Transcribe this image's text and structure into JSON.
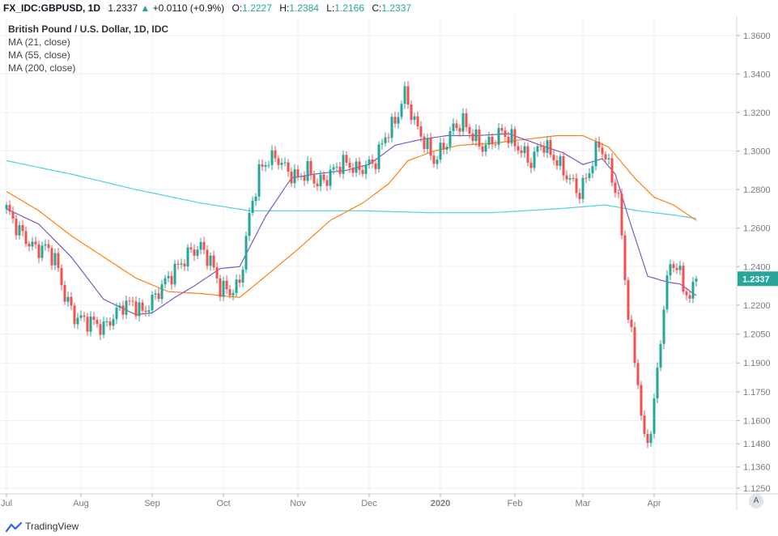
{
  "header": {
    "symbol": "FX_IDC:GBPUSD, 1D",
    "last": "1.2337",
    "arrow": "▲",
    "change": "+0.0110 (+0.9%)",
    "o_label": "O:",
    "o_val": "1.2227",
    "h_label": "H:",
    "h_val": "1.2384",
    "l_label": "L:",
    "l_val": "1.2166",
    "c_label": "C:",
    "c_val": "1.2337"
  },
  "legend": {
    "title": "British Pound / U.S. Dollar, 1D, IDC",
    "ma21": "MA (21, close)",
    "ma55": "MA (55, close)",
    "ma200": "MA (200, close)"
  },
  "price_tag": "1.2337",
  "auto_label": "A",
  "brand": "TradingView",
  "colors": {
    "up": "#26a69a",
    "down": "#ef5350",
    "ma21": "#7e57c2",
    "ma55": "#ff7f0e",
    "ma200": "#4dd0e1",
    "grid": "#eef0f3",
    "axis": "#787b86",
    "tag": "#26a69a"
  },
  "chart_data": {
    "type": "candlestick",
    "title": "British Pound / U.S. Dollar, 1D, IDC",
    "y_ticks": [
      1.36,
      1.34,
      1.32,
      1.3,
      1.28,
      1.26,
      1.24,
      1.22,
      1.205,
      1.19,
      1.175,
      1.16,
      1.148,
      1.136,
      1.125
    ],
    "x_ticks": [
      "Jul",
      "Aug",
      "Sep",
      "Oct",
      "Nov",
      "Dec",
      "2020",
      "Feb",
      "Mar",
      "Apr"
    ],
    "x_tick_positions": [
      0,
      23,
      45,
      67,
      90,
      112,
      134,
      157,
      178,
      200
    ],
    "close_path": [
      [
        0,
        1.27
      ],
      [
        3,
        1.261
      ],
      [
        6,
        1.254
      ],
      [
        9,
        1.249
      ],
      [
        12,
        1.25
      ],
      [
        15,
        1.244
      ],
      [
        18,
        1.225
      ],
      [
        21,
        1.214
      ],
      [
        24,
        1.212
      ],
      [
        27,
        1.211
      ],
      [
        30,
        1.208
      ],
      [
        33,
        1.214
      ],
      [
        36,
        1.22
      ],
      [
        39,
        1.221
      ],
      [
        42,
        1.216
      ],
      [
        45,
        1.222
      ],
      [
        48,
        1.23
      ],
      [
        51,
        1.236
      ],
      [
        54,
        1.242
      ],
      [
        57,
        1.248
      ],
      [
        60,
        1.25
      ],
      [
        63,
        1.243
      ],
      [
        66,
        1.229
      ],
      [
        69,
        1.227
      ],
      [
        72,
        1.231
      ],
      [
        75,
        1.266
      ],
      [
        78,
        1.289
      ],
      [
        81,
        1.296
      ],
      [
        84,
        1.296
      ],
      [
        87,
        1.289
      ],
      [
        90,
        1.286
      ],
      [
        93,
        1.29
      ],
      [
        96,
        1.283
      ],
      [
        99,
        1.286
      ],
      [
        102,
        1.292
      ],
      [
        105,
        1.294
      ],
      [
        108,
        1.29
      ],
      [
        111,
        1.292
      ],
      [
        114,
        1.295
      ],
      [
        117,
        1.308
      ],
      [
        120,
        1.315
      ],
      [
        123,
        1.33
      ],
      [
        126,
        1.315
      ],
      [
        129,
        1.305
      ],
      [
        132,
        1.295
      ],
      [
        135,
        1.302
      ],
      [
        138,
        1.312
      ],
      [
        141,
        1.315
      ],
      [
        144,
        1.308
      ],
      [
        147,
        1.302
      ],
      [
        150,
        1.305
      ],
      [
        153,
        1.31
      ],
      [
        156,
        1.306
      ],
      [
        159,
        1.3
      ],
      [
        162,
        1.294
      ],
      [
        165,
        1.304
      ],
      [
        168,
        1.299
      ],
      [
        171,
        1.292
      ],
      [
        174,
        1.285
      ],
      [
        177,
        1.278
      ],
      [
        180,
        1.29
      ],
      [
        183,
        1.304
      ],
      [
        186,
        1.292
      ],
      [
        189,
        1.275
      ],
      [
        192,
        1.215
      ],
      [
        195,
        1.18
      ],
      [
        197,
        1.148
      ],
      [
        199,
        1.155
      ],
      [
        201,
        1.185
      ],
      [
        203,
        1.22
      ],
      [
        205,
        1.242
      ],
      [
        207,
        1.24
      ],
      [
        209,
        1.23
      ],
      [
        211,
        1.223
      ],
      [
        213,
        1.2337
      ]
    ],
    "ma21_path": [
      [
        0,
        1.27
      ],
      [
        10,
        1.262
      ],
      [
        20,
        1.245
      ],
      [
        30,
        1.223
      ],
      [
        40,
        1.215
      ],
      [
        45,
        1.216
      ],
      [
        52,
        1.224
      ],
      [
        58,
        1.23
      ],
      [
        66,
        1.239
      ],
      [
        72,
        1.24
      ],
      [
        80,
        1.266
      ],
      [
        88,
        1.286
      ],
      [
        95,
        1.288
      ],
      [
        105,
        1.29
      ],
      [
        112,
        1.293
      ],
      [
        120,
        1.303
      ],
      [
        128,
        1.306
      ],
      [
        136,
        1.308
      ],
      [
        145,
        1.308
      ],
      [
        155,
        1.309
      ],
      [
        165,
        1.303
      ],
      [
        172,
        1.299
      ],
      [
        178,
        1.293
      ],
      [
        184,
        1.296
      ],
      [
        188,
        1.288
      ],
      [
        192,
        1.266
      ],
      [
        198,
        1.235
      ],
      [
        204,
        1.232
      ],
      [
        208,
        1.231
      ],
      [
        213,
        1.225
      ]
    ],
    "ma55_path": [
      [
        0,
        1.279
      ],
      [
        10,
        1.269
      ],
      [
        20,
        1.256
      ],
      [
        30,
        1.245
      ],
      [
        40,
        1.234
      ],
      [
        50,
        1.227
      ],
      [
        60,
        1.226
      ],
      [
        72,
        1.224
      ],
      [
        80,
        1.235
      ],
      [
        90,
        1.249
      ],
      [
        100,
        1.264
      ],
      [
        110,
        1.273
      ],
      [
        118,
        1.283
      ],
      [
        124,
        1.295
      ],
      [
        132,
        1.3
      ],
      [
        140,
        1.303
      ],
      [
        150,
        1.304
      ],
      [
        160,
        1.306
      ],
      [
        170,
        1.308
      ],
      [
        178,
        1.308
      ],
      [
        186,
        1.302
      ],
      [
        194,
        1.286
      ],
      [
        200,
        1.276
      ],
      [
        206,
        1.272
      ],
      [
        213,
        1.264
      ]
    ],
    "ma200_path": [
      [
        0,
        1.295
      ],
      [
        20,
        1.288
      ],
      [
        40,
        1.28
      ],
      [
        60,
        1.273
      ],
      [
        75,
        1.269
      ],
      [
        90,
        1.269
      ],
      [
        110,
        1.269
      ],
      [
        130,
        1.268
      ],
      [
        150,
        1.268
      ],
      [
        170,
        1.27
      ],
      [
        185,
        1.272
      ],
      [
        195,
        1.269
      ],
      [
        205,
        1.267
      ],
      [
        213,
        1.265
      ]
    ],
    "last_price": 1.2337
  }
}
